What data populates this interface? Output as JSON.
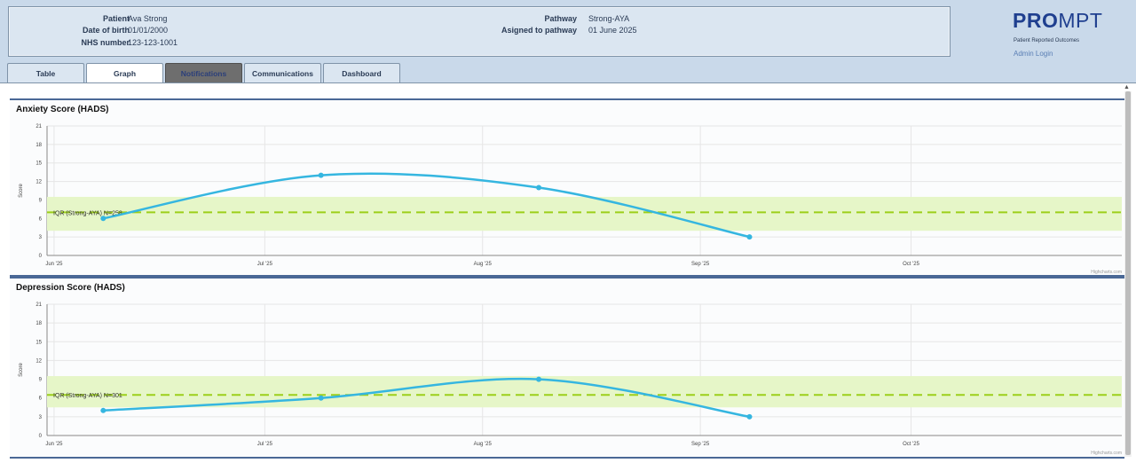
{
  "patient": {
    "patient_label": "Patient",
    "patient_value": "Ava Strong",
    "dob_label": "Date of birth",
    "dob_value": "01/01/2000",
    "nhs_label": "NHS number",
    "nhs_value": "123-123-1001",
    "pathway_label": "Pathway",
    "pathway_value": "Strong-AYA",
    "assigned_label": "Asigned to pathway",
    "assigned_value": "01 June 2025"
  },
  "brand": {
    "name_bold": "PRO",
    "name_rest": "MPT",
    "subtitle": "Patient Reported Outcomes",
    "admin_link": "Admin Login"
  },
  "tabs": [
    {
      "label": "Table"
    },
    {
      "label": "Graph"
    },
    {
      "label": "Notifications"
    },
    {
      "label": "Communications"
    },
    {
      "label": "Dashboard"
    }
  ],
  "colors": {
    "line": "#35b6e0",
    "iqr_band": "#e6f6c8",
    "median": "#9ccf1a",
    "accent": "#4a6896"
  },
  "chart_data": [
    {
      "type": "line",
      "title": "Anxiety Score (HADS)",
      "xlabel": "",
      "ylabel": "Score",
      "x_ticks": [
        "Jun '25",
        "Jul '25",
        "Aug '25",
        "Sep '25",
        "Oct '25"
      ],
      "x_tick_dates": [
        "2025-06-01",
        "2025-07-01",
        "2025-08-01",
        "2025-09-01",
        "2025-10-01"
      ],
      "xlim": [
        "2025-05-31",
        "2025-10-31"
      ],
      "ylim": [
        0,
        21
      ],
      "y_ticks": [
        0,
        3,
        6,
        9,
        12,
        15,
        18,
        21
      ],
      "series": [
        {
          "x": [
            "2025-06-08",
            "2025-07-09",
            "2025-08-09",
            "2025-09-08"
          ],
          "values": [
            6,
            13,
            11,
            3
          ]
        }
      ],
      "iqr": {
        "label": "IQR (Strong-AYA) N=258",
        "low": 4,
        "high": 9.5,
        "median": 7
      },
      "grid": true,
      "credit": "Highcharts.com"
    },
    {
      "type": "line",
      "title": "Depression Score (HADS)",
      "xlabel": "",
      "ylabel": "Score",
      "x_ticks": [
        "Jun '25",
        "Jul '25",
        "Aug '25",
        "Sep '25",
        "Oct '25"
      ],
      "x_tick_dates": [
        "2025-06-01",
        "2025-07-01",
        "2025-08-01",
        "2025-09-01",
        "2025-10-01"
      ],
      "xlim": [
        "2025-05-31",
        "2025-10-31"
      ],
      "ylim": [
        0,
        21
      ],
      "y_ticks": [
        0,
        3,
        6,
        9,
        12,
        15,
        18,
        21
      ],
      "series": [
        {
          "x": [
            "2025-06-08",
            "2025-07-09",
            "2025-08-09",
            "2025-09-08"
          ],
          "values": [
            4,
            6,
            9,
            3
          ]
        }
      ],
      "iqr": {
        "label": "IQR (Strong-AYA) N=301",
        "low": 4.5,
        "high": 9.5,
        "median": 6.5
      },
      "grid": true,
      "credit": "Highcharts.com"
    }
  ]
}
